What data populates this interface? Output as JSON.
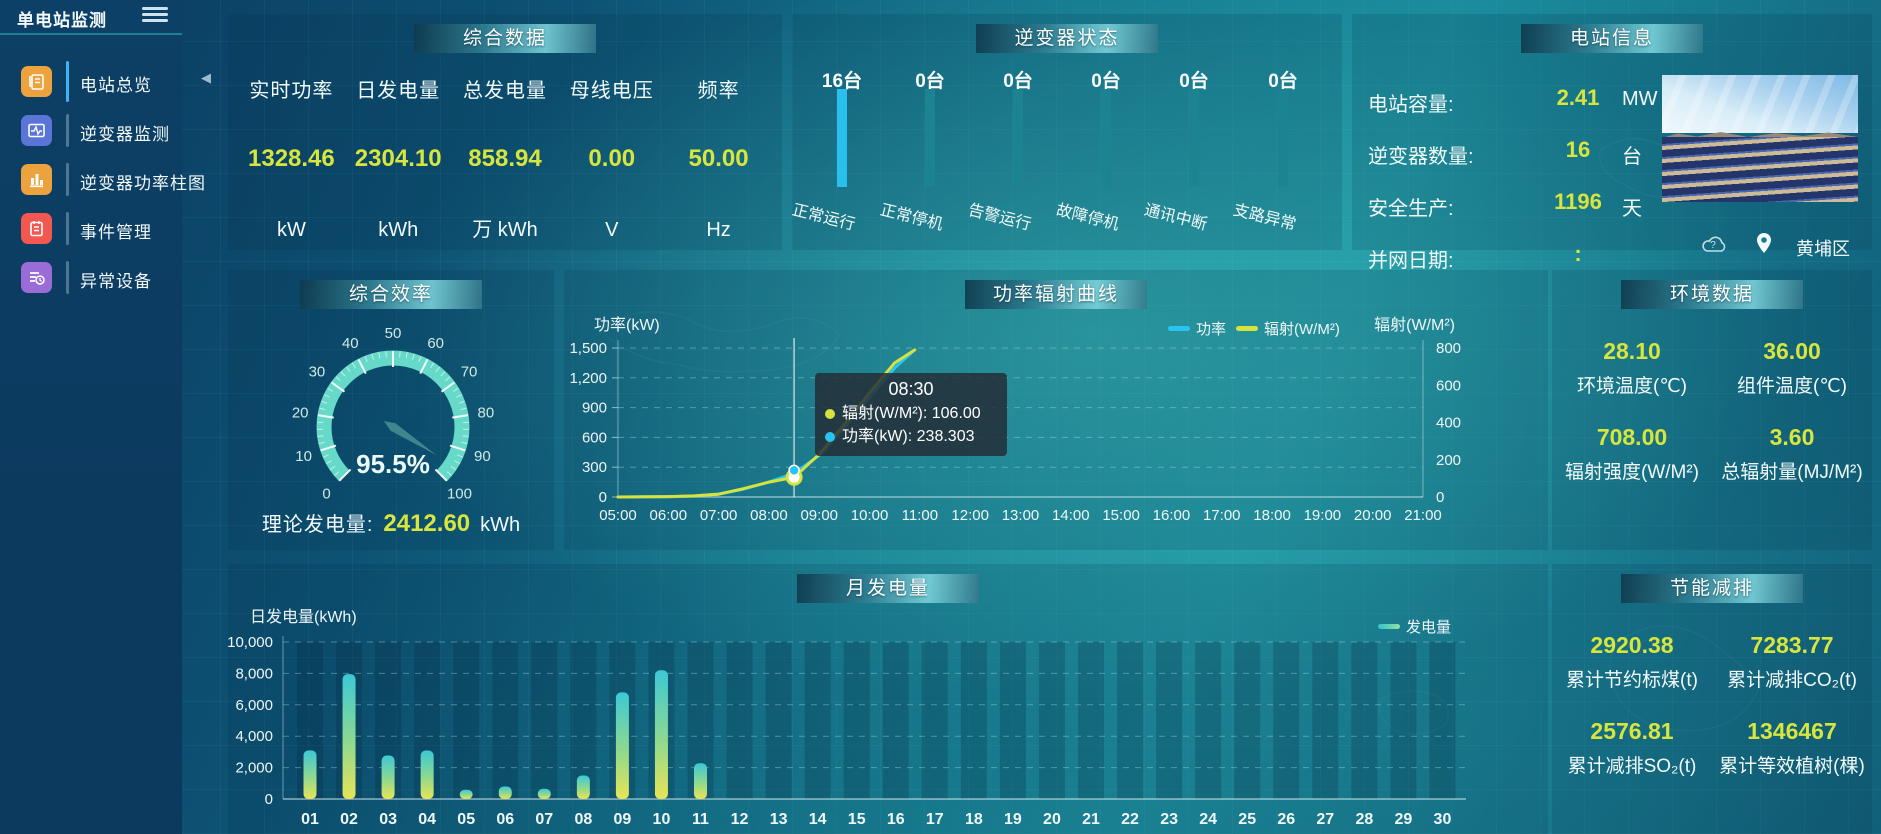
{
  "sidebar": {
    "title": "单电站监测",
    "items": [
      {
        "label": "电站总览",
        "icon": "document-icon",
        "color": "#eda33d",
        "active": true
      },
      {
        "label": "逆变器监测",
        "icon": "monitor-pulse-icon",
        "color": "#5a74d8",
        "active": false
      },
      {
        "label": "逆变器功率柱图",
        "icon": "bar-chart-icon",
        "color": "#eda33d",
        "active": false
      },
      {
        "label": "事件管理",
        "icon": "notebook-icon",
        "color": "#f25750",
        "active": false
      },
      {
        "label": "异常设备",
        "icon": "device-list-clock-icon",
        "color": "#9a6cd8",
        "active": false
      }
    ]
  },
  "panels": {
    "summary": {
      "title": "综合数据",
      "metrics": [
        {
          "label": "实时功率",
          "value": "1328.46",
          "unit": "kW"
        },
        {
          "label": "日发电量",
          "value": "2304.10",
          "unit": "kWh"
        },
        {
          "label": "总发电量",
          "value": "858.94",
          "unit": "万 kWh"
        },
        {
          "label": "母线电压",
          "value": "0.00",
          "unit": "V"
        },
        {
          "label": "频率",
          "value": "50.00",
          "unit": "Hz"
        }
      ]
    },
    "inverter": {
      "title": "逆变器状态"
    },
    "station": {
      "title": "电站信息",
      "rows": [
        {
          "label": "电站容量:",
          "value": "2.41",
          "unit": "MW"
        },
        {
          "label": "逆变器数量:",
          "value": "16",
          "unit": "台"
        },
        {
          "label": "安全生产:",
          "value": "1196",
          "unit": "天"
        },
        {
          "label": "并网日期:",
          "value": ":",
          "unit": ""
        }
      ],
      "location": "黄埔区"
    },
    "efficiency": {
      "title": "综合效率",
      "theoretical": {
        "label": "理论发电量:",
        "value": "2412.60",
        "unit": "kWh"
      }
    },
    "power_radiation": {
      "title": "功率辐射曲线",
      "tooltip": {
        "title": "08:30",
        "rows": [
          {
            "color": "#d8e23c",
            "text": "辐射(W/M²): 106.00"
          },
          {
            "color": "#29c5f2",
            "text": "功率(kW): 238.303"
          }
        ]
      }
    },
    "environment": {
      "title": "环境数据",
      "metrics": [
        {
          "value": "28.10",
          "label": "环境温度(℃)"
        },
        {
          "value": "36.00",
          "label": "组件温度(℃)"
        },
        {
          "value": "708.00",
          "label": "辐射强度(W/M²)"
        },
        {
          "value": "3.60",
          "label": "总辐射量(MJ/M²)"
        }
      ]
    },
    "monthly": {
      "title": "月发电量"
    },
    "energy_saving": {
      "title": "节能减排",
      "metrics": [
        {
          "value": "2920.38",
          "label": "累计节约标煤(t)"
        },
        {
          "value": "7283.77",
          "label": "累计减排CO₂(t)"
        },
        {
          "value": "2576.81",
          "label": "累计减排SO₂(t)"
        },
        {
          "value": "1346467",
          "label": "累计等效植树(棵)"
        }
      ]
    }
  },
  "chart_data": [
    {
      "id": "power_radiation",
      "type": "line",
      "title": "功率辐射曲线",
      "x_ticks": [
        "05:00",
        "06:00",
        "07:00",
        "08:00",
        "09:00",
        "10:00",
        "11:00",
        "12:00",
        "13:00",
        "14:00",
        "15:00",
        "16:00",
        "17:00",
        "18:00",
        "19:00",
        "20:00",
        "21:00"
      ],
      "x_range_hours": [
        5,
        21
      ],
      "left_axis": {
        "label": "功率(kW)",
        "min": 0,
        "max": 1500,
        "ticks": [
          0,
          300,
          600,
          900,
          1200,
          1500
        ]
      },
      "right_axis": {
        "label": "辐射(W/M²)",
        "min": 0,
        "max": 800,
        "ticks": [
          0,
          200,
          400,
          600,
          800
        ]
      },
      "grid": true,
      "legend_position": "top-right",
      "series": [
        {
          "name": "功率",
          "color": "#29c5f2",
          "axis": "left",
          "x": [
            5,
            5.5,
            6,
            6.5,
            7,
            7.5,
            8,
            8.5,
            9,
            9.5,
            10,
            10.5,
            10.85
          ],
          "values": [
            0,
            1,
            3,
            10,
            30,
            80,
            150,
            238.303,
            420,
            700,
            1000,
            1300,
            1460
          ]
        },
        {
          "name": "辐射(W/M²)",
          "color": "#d8e23c",
          "axis": "right",
          "x": [
            5,
            5.5,
            6,
            6.5,
            7,
            7.5,
            8,
            8.5,
            9,
            9.5,
            10,
            10.5,
            10.9
          ],
          "values": [
            0,
            1,
            2,
            6,
            15,
            45,
            80,
            106,
            230,
            390,
            560,
            720,
            790
          ]
        }
      ],
      "highlight": {
        "x": 8.5,
        "power": 238.303,
        "radiation": 106.0,
        "crosshair": true
      }
    },
    {
      "id": "monthly_generation",
      "type": "bar",
      "title": "月发电量",
      "ylabel": "日发电量(kWh)",
      "categories": [
        "01",
        "02",
        "03",
        "04",
        "05",
        "06",
        "07",
        "08",
        "09",
        "10",
        "11",
        "12",
        "13",
        "14",
        "15",
        "16",
        "17",
        "18",
        "19",
        "20",
        "21",
        "22",
        "23",
        "24",
        "25",
        "26",
        "27",
        "28",
        "29",
        "30"
      ],
      "values": [
        3100,
        7950,
        2770,
        3090,
        590,
        800,
        650,
        1500,
        6790,
        8200,
        2280,
        0,
        0,
        0,
        0,
        0,
        0,
        0,
        0,
        0,
        0,
        0,
        0,
        0,
        0,
        0,
        0,
        0,
        0,
        0
      ],
      "ylim": [
        0,
        10000
      ],
      "yticks": [
        0,
        2000,
        4000,
        6000,
        8000,
        10000
      ],
      "legend": [
        "发电量"
      ],
      "bar_gradient": [
        "#3cc8d6",
        "#8fd98e",
        "#e9e455"
      ],
      "grid": true
    },
    {
      "id": "inverter_status",
      "type": "bar",
      "title": "逆变器状态",
      "categories": [
        "正常运行",
        "正常停机",
        "告警运行",
        "故障停机",
        "通讯中断",
        "支路异常"
      ],
      "values": [
        16,
        0,
        0,
        0,
        0,
        0
      ],
      "unit": "台",
      "highlight_color": "#29c0f0",
      "bar_color": "#1b8490"
    },
    {
      "id": "efficiency_gauge",
      "type": "gauge",
      "min": 0,
      "max": 100,
      "value": 95.5,
      "display": "95.5%",
      "tick_labels": [
        0,
        10,
        20,
        30,
        40,
        50,
        60,
        70,
        80,
        90,
        100
      ],
      "arc_color": "#66d9c9"
    }
  ],
  "colors": {
    "value_yellow": "#d7e63e",
    "power_line": "#29c5f2",
    "radiation_line": "#d8e23c",
    "active_menu": "#41b2f2"
  }
}
